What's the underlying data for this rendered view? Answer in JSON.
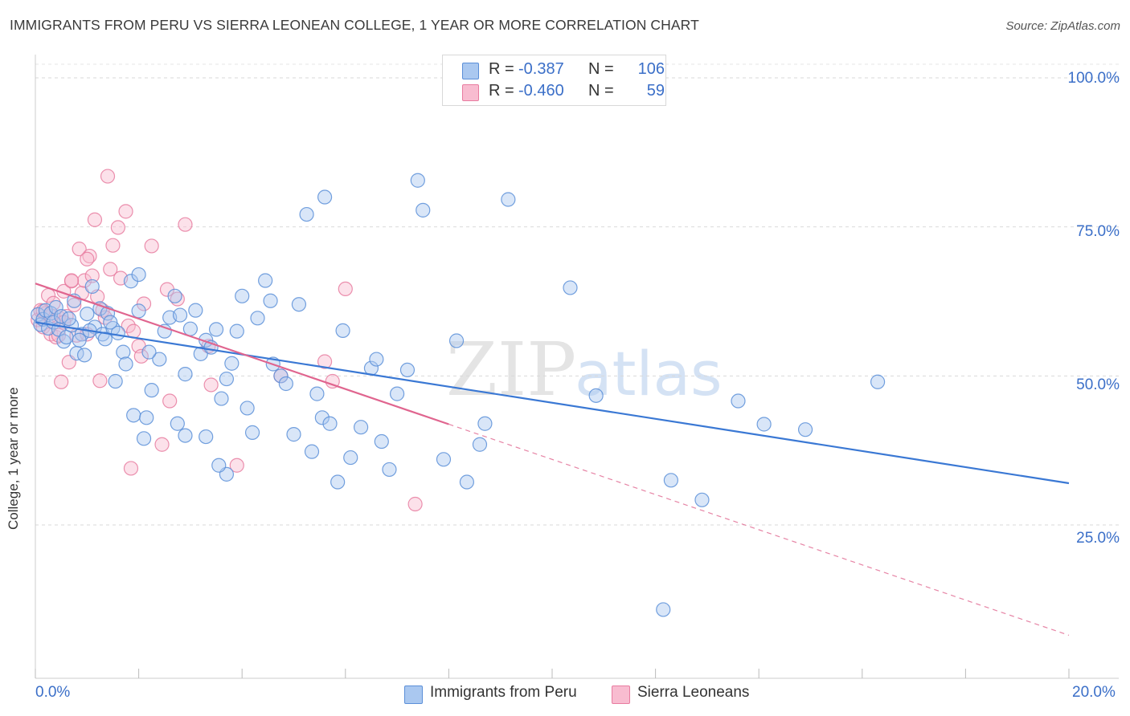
{
  "title": "IMMIGRANTS FROM PERU VS SIERRA LEONEAN COLLEGE, 1 YEAR OR MORE CORRELATION CHART",
  "source": "Source: ZipAtlas.com",
  "watermark": {
    "zip": "ZIP",
    "atlas": "atlas"
  },
  "legend_top": {
    "r_label": "R =",
    "n_label": "N =",
    "rows": [
      {
        "r": "-0.387",
        "n": "106"
      },
      {
        "r": "-0.460",
        "n": "59"
      }
    ]
  },
  "colors": {
    "peru_fill": "#aac8f0",
    "peru_stroke": "#5b8fd8",
    "peru_line": "#3a78d4",
    "sl_fill": "#f8bcd0",
    "sl_stroke": "#e87ca0",
    "sl_line": "#e0658f",
    "tick_text": "#3b6fc8",
    "grid": "#d9d9d9"
  },
  "chart_data": {
    "type": "scatter",
    "title": "IMMIGRANTS FROM PERU VS SIERRA LEONEAN COLLEGE, 1 YEAR OR MORE CORRELATION CHART",
    "xlabel": "",
    "ylabel": "College, 1 year or more",
    "xlim": [
      0,
      20
    ],
    "ylim": [
      0,
      100
    ],
    "x_tick_labels": [
      "0.0%",
      "20.0%"
    ],
    "y_tick_labels": [
      "100.0%",
      "75.0%",
      "50.0%",
      "25.0%"
    ],
    "y_tick_values": [
      100,
      75,
      50,
      25
    ],
    "grid": true,
    "legend_position": "bottom",
    "series": [
      {
        "name": "Immigrants from Peru",
        "r": -0.387,
        "n": 106,
        "trend": {
          "x0": 0,
          "y0": 59.0,
          "x1": 20,
          "y1": 32.0,
          "dashed_from": null
        },
        "points": [
          [
            0.05,
            60.3
          ],
          [
            0.1,
            58.6
          ],
          [
            0.15,
            59.5
          ],
          [
            0.2,
            61.0
          ],
          [
            0.25,
            58.0
          ],
          [
            0.3,
            60.5
          ],
          [
            0.35,
            59.0
          ],
          [
            0.4,
            61.5
          ],
          [
            0.45,
            57.8
          ],
          [
            0.5,
            60.0
          ],
          [
            0.55,
            55.8
          ],
          [
            0.6,
            56.5
          ],
          [
            0.7,
            58.5
          ],
          [
            0.75,
            62.6
          ],
          [
            0.8,
            53.8
          ],
          [
            0.9,
            57.0
          ],
          [
            0.95,
            53.5
          ],
          [
            1.0,
            60.4
          ],
          [
            1.1,
            65.0
          ],
          [
            1.15,
            58.2
          ],
          [
            1.25,
            61.3
          ],
          [
            1.3,
            57.0
          ],
          [
            1.4,
            60.5
          ],
          [
            1.5,
            58.0
          ],
          [
            1.55,
            49.1
          ],
          [
            1.7,
            54.0
          ],
          [
            1.75,
            52.0
          ],
          [
            1.85,
            65.9
          ],
          [
            1.9,
            43.4
          ],
          [
            2.0,
            67.0
          ],
          [
            2.15,
            43.0
          ],
          [
            2.25,
            47.6
          ],
          [
            2.4,
            52.8
          ],
          [
            2.5,
            57.5
          ],
          [
            2.6,
            59.8
          ],
          [
            2.7,
            63.4
          ],
          [
            2.8,
            60.2
          ],
          [
            2.9,
            50.3
          ],
          [
            3.0,
            57.9
          ],
          [
            3.1,
            61.0
          ],
          [
            3.2,
            53.7
          ],
          [
            3.3,
            56.0
          ],
          [
            3.4,
            54.8
          ],
          [
            3.5,
            57.8
          ],
          [
            3.6,
            46.2
          ],
          [
            3.7,
            49.5
          ],
          [
            3.8,
            52.1
          ],
          [
            3.9,
            57.5
          ],
          [
            4.0,
            63.4
          ],
          [
            4.1,
            44.6
          ],
          [
            4.2,
            40.5
          ],
          [
            4.3,
            59.7
          ],
          [
            4.45,
            66.0
          ],
          [
            4.55,
            62.6
          ],
          [
            4.6,
            52.0
          ],
          [
            4.75,
            50.0
          ],
          [
            4.85,
            48.7
          ],
          [
            5.0,
            40.2
          ],
          [
            5.1,
            62.0
          ],
          [
            5.25,
            77.1
          ],
          [
            5.35,
            37.3
          ],
          [
            5.45,
            47.0
          ],
          [
            5.55,
            43.0
          ],
          [
            5.6,
            80.0
          ],
          [
            5.7,
            42.0
          ],
          [
            5.85,
            32.2
          ],
          [
            5.95,
            57.6
          ],
          [
            6.1,
            36.3
          ],
          [
            6.3,
            41.4
          ],
          [
            6.5,
            51.3
          ],
          [
            6.6,
            52.8
          ],
          [
            6.7,
            39.0
          ],
          [
            6.85,
            34.3
          ],
          [
            7.0,
            47.0
          ],
          [
            7.2,
            51.0
          ],
          [
            7.4,
            82.8
          ],
          [
            7.5,
            77.8
          ],
          [
            7.9,
            36.0
          ],
          [
            8.15,
            55.9
          ],
          [
            8.35,
            32.2
          ],
          [
            8.6,
            38.5
          ],
          [
            8.7,
            42.0
          ],
          [
            9.15,
            79.6
          ],
          [
            10.35,
            64.8
          ],
          [
            10.85,
            46.7
          ],
          [
            12.3,
            32.5
          ],
          [
            12.15,
            10.8
          ],
          [
            12.9,
            29.2
          ],
          [
            13.6,
            45.8
          ],
          [
            14.1,
            41.9
          ],
          [
            14.9,
            41.0
          ],
          [
            16.3,
            49.0
          ],
          [
            2.1,
            39.5
          ],
          [
            2.9,
            40.0
          ],
          [
            3.7,
            33.5
          ],
          [
            3.3,
            39.8
          ],
          [
            2.0,
            60.9
          ],
          [
            2.2,
            54.0
          ],
          [
            1.6,
            57.2
          ],
          [
            0.65,
            59.6
          ],
          [
            0.85,
            56.0
          ],
          [
            1.05,
            57.6
          ],
          [
            1.35,
            56.2
          ],
          [
            1.45,
            59.0
          ],
          [
            2.75,
            42.0
          ],
          [
            3.55,
            35.0
          ]
        ]
      },
      {
        "name": "Sierra Leoneans",
        "r": -0.46,
        "n": 59,
        "trend": {
          "x0": 0,
          "y0": 65.5,
          "x1": 20,
          "y1": 6.5,
          "dashed_from": 8.0
        },
        "points": [
          [
            0.05,
            59.4
          ],
          [
            0.1,
            61.0
          ],
          [
            0.15,
            58.2
          ],
          [
            0.2,
            60.5
          ],
          [
            0.25,
            63.5
          ],
          [
            0.3,
            57.0
          ],
          [
            0.35,
            62.2
          ],
          [
            0.4,
            56.5
          ],
          [
            0.45,
            59.8
          ],
          [
            0.5,
            49.0
          ],
          [
            0.55,
            64.2
          ],
          [
            0.6,
            60.0
          ],
          [
            0.65,
            52.3
          ],
          [
            0.7,
            65.9
          ],
          [
            0.75,
            61.9
          ],
          [
            0.8,
            56.8
          ],
          [
            0.85,
            71.3
          ],
          [
            0.9,
            63.9
          ],
          [
            0.95,
            66.0
          ],
          [
            1.0,
            57.0
          ],
          [
            1.05,
            70.1
          ],
          [
            1.1,
            66.8
          ],
          [
            1.15,
            76.2
          ],
          [
            1.2,
            63.3
          ],
          [
            1.25,
            49.2
          ],
          [
            1.3,
            61.0
          ],
          [
            1.35,
            59.8
          ],
          [
            1.4,
            83.5
          ],
          [
            1.45,
            67.9
          ],
          [
            1.5,
            71.9
          ],
          [
            1.6,
            74.9
          ],
          [
            1.65,
            66.4
          ],
          [
            1.75,
            77.6
          ],
          [
            1.8,
            58.4
          ],
          [
            1.85,
            34.5
          ],
          [
            1.9,
            57.5
          ],
          [
            2.0,
            55.0
          ],
          [
            2.05,
            53.3
          ],
          [
            2.1,
            62.1
          ],
          [
            2.25,
            71.8
          ],
          [
            2.55,
            64.5
          ],
          [
            2.6,
            45.8
          ],
          [
            2.75,
            62.9
          ],
          [
            3.4,
            48.5
          ],
          [
            3.9,
            35.0
          ],
          [
            4.75,
            50.0
          ],
          [
            5.6,
            52.4
          ],
          [
            5.75,
            49.1
          ],
          [
            6.0,
            64.6
          ],
          [
            7.35,
            28.5
          ],
          [
            2.9,
            75.4
          ],
          [
            2.45,
            38.5
          ],
          [
            0.45,
            56.8
          ],
          [
            0.7,
            66.0
          ],
          [
            1.0,
            69.6
          ],
          [
            3.35,
            55.0
          ],
          [
            0.3,
            60.1
          ],
          [
            0.55,
            59.0
          ],
          [
            0.15,
            60.9
          ]
        ]
      }
    ]
  },
  "legend_bottom": [
    {
      "label": "Immigrants from Peru"
    },
    {
      "label": "Sierra Leoneans"
    }
  ]
}
